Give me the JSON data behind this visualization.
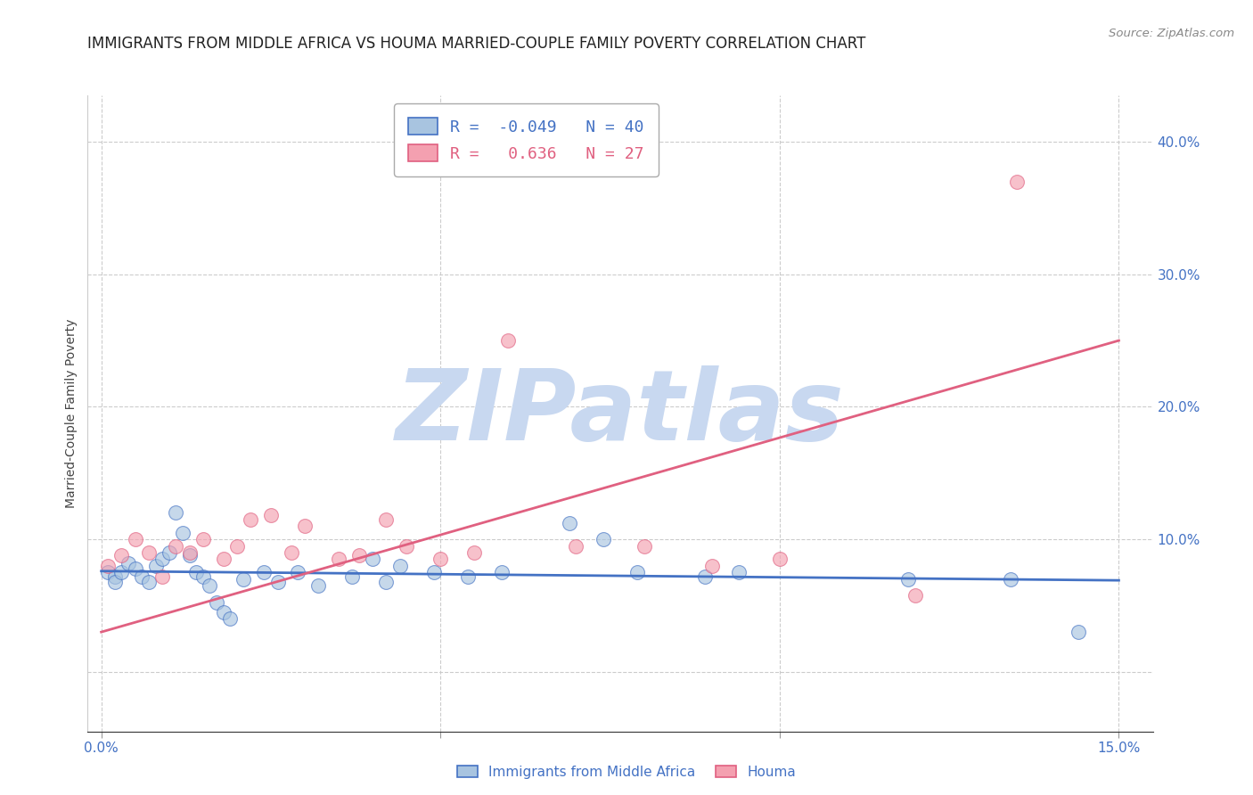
{
  "title": "IMMIGRANTS FROM MIDDLE AFRICA VS HOUMA MARRIED-COUPLE FAMILY POVERTY CORRELATION CHART",
  "source": "Source: ZipAtlas.com",
  "ylabel": "Married-Couple Family Poverty",
  "legend_label1": "Immigrants from Middle Africa",
  "legend_label2": "Houma",
  "R1": -0.049,
  "N1": 40,
  "R2": 0.636,
  "N2": 27,
  "color1": "#a8c4e0",
  "color2": "#f4a0b0",
  "line_color1": "#4472c4",
  "line_color2": "#e06080",
  "text_color": "#4472c4",
  "xlim": [
    -0.002,
    0.155
  ],
  "ylim": [
    -0.045,
    0.435
  ],
  "blue_x": [
    0.001,
    0.002,
    0.002,
    0.003,
    0.004,
    0.005,
    0.006,
    0.007,
    0.008,
    0.009,
    0.01,
    0.011,
    0.012,
    0.013,
    0.014,
    0.015,
    0.016,
    0.017,
    0.018,
    0.019,
    0.021,
    0.024,
    0.026,
    0.029,
    0.032,
    0.037,
    0.04,
    0.042,
    0.044,
    0.049,
    0.054,
    0.059,
    0.069,
    0.074,
    0.079,
    0.089,
    0.094,
    0.119,
    0.134,
    0.144
  ],
  "blue_y": [
    0.075,
    0.072,
    0.068,
    0.075,
    0.082,
    0.078,
    0.072,
    0.068,
    0.08,
    0.085,
    0.09,
    0.12,
    0.105,
    0.088,
    0.075,
    0.072,
    0.065,
    0.052,
    0.045,
    0.04,
    0.07,
    0.075,
    0.068,
    0.075,
    0.065,
    0.072,
    0.085,
    0.068,
    0.08,
    0.075,
    0.072,
    0.075,
    0.112,
    0.1,
    0.075,
    0.072,
    0.075,
    0.07,
    0.07,
    0.03
  ],
  "pink_x": [
    0.001,
    0.003,
    0.005,
    0.007,
    0.009,
    0.011,
    0.013,
    0.015,
    0.018,
    0.02,
    0.022,
    0.025,
    0.028,
    0.03,
    0.035,
    0.038,
    0.042,
    0.045,
    0.05,
    0.055,
    0.06,
    0.07,
    0.08,
    0.09,
    0.1,
    0.12,
    0.135
  ],
  "pink_y": [
    0.08,
    0.088,
    0.1,
    0.09,
    0.072,
    0.095,
    0.09,
    0.1,
    0.085,
    0.095,
    0.115,
    0.118,
    0.09,
    0.11,
    0.085,
    0.088,
    0.115,
    0.095,
    0.085,
    0.09,
    0.25,
    0.095,
    0.095,
    0.08,
    0.085,
    0.058,
    0.37
  ],
  "blue_line_x": [
    0.0,
    0.15
  ],
  "blue_line_y": [
    0.076,
    0.069
  ],
  "pink_line_x": [
    0.0,
    0.15
  ],
  "pink_line_y": [
    0.03,
    0.25
  ],
  "watermark": "ZIPatlas",
  "watermark_color": "#c8d8f0",
  "title_fontsize": 12,
  "axis_fontsize": 10,
  "tick_fontsize": 11,
  "legend_fontsize": 13
}
